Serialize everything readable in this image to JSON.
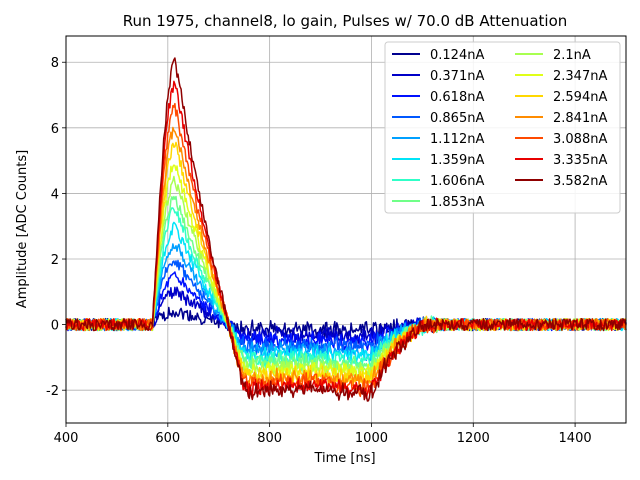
{
  "chart_data": {
    "type": "line",
    "title": "Run 1975, channel8, lo gain, Pulses w/ 70.0 dB Attenuation",
    "xlabel": "Time [ns]",
    "ylabel": "Amplitude [ADC Counts]",
    "xlim": [
      400,
      1500
    ],
    "ylim": [
      -3,
      8.8
    ],
    "xticks": [
      400,
      600,
      800,
      1000,
      1200,
      1400
    ],
    "yticks": [
      -2,
      0,
      2,
      4,
      6,
      8
    ],
    "grid": true,
    "legend_position": "top-right",
    "pulse_shape": {
      "rise_start_ns": 570,
      "peak_ns": 615,
      "fall_end_ns": 720,
      "undershoot_start_ns": 760,
      "undershoot_flat_until_ns": 1000,
      "recovery_end_ns": 1130,
      "noise_amplitude": 0.18
    },
    "series": [
      {
        "name": "0.124nA",
        "color": "#00008f",
        "peak": 0.4,
        "undershoot": -0.15
      },
      {
        "name": "0.371nA",
        "color": "#0000c8",
        "peak": 1.0,
        "undershoot": -0.35
      },
      {
        "name": "0.618nA",
        "color": "#0010ff",
        "peak": 1.5,
        "undershoot": -0.5
      },
      {
        "name": "0.865nA",
        "color": "#0058ff",
        "peak": 2.0,
        "undershoot": -0.65
      },
      {
        "name": "1.112nA",
        "color": "#00a0ff",
        "peak": 2.5,
        "undershoot": -0.8
      },
      {
        "name": "1.359nA",
        "color": "#00e4f8",
        "peak": 3.0,
        "undershoot": -0.95
      },
      {
        "name": "1.606nA",
        "color": "#30ffc8",
        "peak": 3.5,
        "undershoot": -1.1
      },
      {
        "name": "1.853nA",
        "color": "#70ff88",
        "peak": 3.9,
        "undershoot": -1.2
      },
      {
        "name": "2.1nA",
        "color": "#a8ff50",
        "peak": 4.4,
        "undershoot": -1.35
      },
      {
        "name": "2.347nA",
        "color": "#e0ff18",
        "peak": 4.9,
        "undershoot": -1.45
      },
      {
        "name": "2.594nA",
        "color": "#ffd800",
        "peak": 5.5,
        "undershoot": -1.6
      },
      {
        "name": "2.841nA",
        "color": "#ff8c00",
        "peak": 6.0,
        "undershoot": -1.7
      },
      {
        "name": "3.088nA",
        "color": "#ff4a00",
        "peak": 6.6,
        "undershoot": -1.85
      },
      {
        "name": "3.335nA",
        "color": "#e80000",
        "peak": 7.3,
        "undershoot": -1.95
      },
      {
        "name": "3.582nA",
        "color": "#8f0000",
        "peak": 8.0,
        "undershoot": -2.05
      }
    ]
  }
}
